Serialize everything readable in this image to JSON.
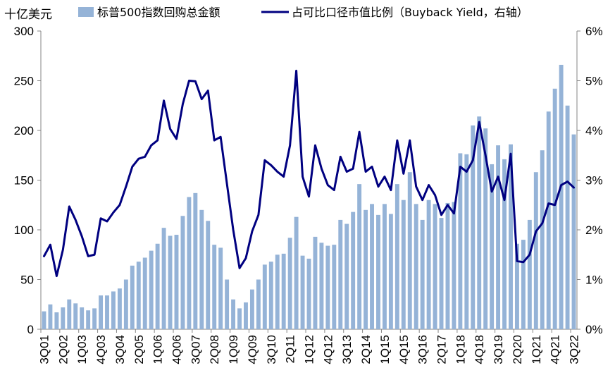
{
  "chart_data": {
    "type": "bar+line",
    "left_axis_unit": "十亿美元",
    "left_ylim": [
      0,
      300
    ],
    "left_ticks": [
      "0",
      "50",
      "100",
      "150",
      "200",
      "250",
      "300"
    ],
    "right_ylim": [
      0,
      6
    ],
    "right_ticks": [
      "0%",
      "1%",
      "2%",
      "3%",
      "4%",
      "5%",
      "6%"
    ],
    "x_tick_labels": [
      "3Q01",
      "2Q02",
      "1Q03",
      "4Q03",
      "3Q04",
      "2Q05",
      "1Q06",
      "4Q06",
      "3Q07",
      "2Q08",
      "1Q09",
      "4Q09",
      "3Q10",
      "2Q11",
      "1Q12",
      "4Q12",
      "3Q13",
      "2Q14",
      "1Q15",
      "4Q15",
      "3Q16",
      "2Q17",
      "1Q18",
      "4Q18",
      "3Q19",
      "2Q20",
      "1Q21",
      "4Q21",
      "3Q22"
    ],
    "x_tick_every": 3,
    "series": [
      {
        "name": "标普500指数回购总金额",
        "axis": "left",
        "color": "#95b3d7",
        "values": [
          18,
          25,
          17,
          22,
          30,
          26,
          22,
          19,
          21,
          34,
          34,
          38,
          41,
          50,
          64,
          68,
          72,
          79,
          86,
          102,
          94,
          95,
          114,
          133,
          137,
          120,
          109,
          85,
          82,
          50,
          30,
          21,
          27,
          40,
          50,
          65,
          68,
          75,
          76,
          92,
          113,
          74,
          71,
          93,
          87,
          84,
          85,
          110,
          106,
          118,
          146,
          120,
          126,
          115,
          126,
          116,
          146,
          130,
          158,
          126,
          110,
          130,
          126,
          112,
          127,
          128,
          177,
          176,
          205,
          214,
          202,
          166,
          185,
          171,
          186,
          86,
          90,
          110,
          158,
          180,
          219,
          242,
          266,
          225,
          196
        ]
      },
      {
        "name": "占可比口径市值比例（Buyback Yield，右轴）",
        "axis": "right",
        "color": "#000080",
        "values": [
          1.47,
          1.7,
          1.07,
          1.6,
          2.47,
          2.2,
          1.87,
          1.47,
          1.5,
          2.23,
          2.17,
          2.35,
          2.5,
          2.87,
          3.27,
          3.43,
          3.47,
          3.7,
          3.8,
          4.6,
          4.03,
          3.83,
          4.53,
          5.0,
          4.99,
          4.63,
          4.8,
          3.8,
          3.87,
          2.93,
          2.0,
          1.23,
          1.43,
          1.97,
          2.3,
          3.4,
          3.3,
          3.17,
          3.07,
          3.7,
          5.2,
          3.07,
          2.67,
          3.7,
          3.23,
          2.9,
          2.8,
          3.47,
          3.17,
          3.23,
          3.97,
          3.17,
          3.27,
          2.87,
          3.07,
          2.8,
          3.8,
          3.13,
          3.8,
          2.87,
          2.6,
          2.9,
          2.7,
          2.3,
          2.5,
          2.33,
          3.27,
          3.17,
          3.4,
          4.17,
          3.5,
          2.77,
          3.07,
          2.6,
          3.53,
          1.37,
          1.35,
          1.5,
          1.97,
          2.13,
          2.53,
          2.5,
          2.9,
          2.97,
          2.85
        ]
      }
    ]
  },
  "legend": {
    "bar_label": "标普500指数回购总金额",
    "line_label": "占可比口径市值比例（Buyback Yield，右轴）"
  },
  "axis_unit_label": "十亿美元"
}
